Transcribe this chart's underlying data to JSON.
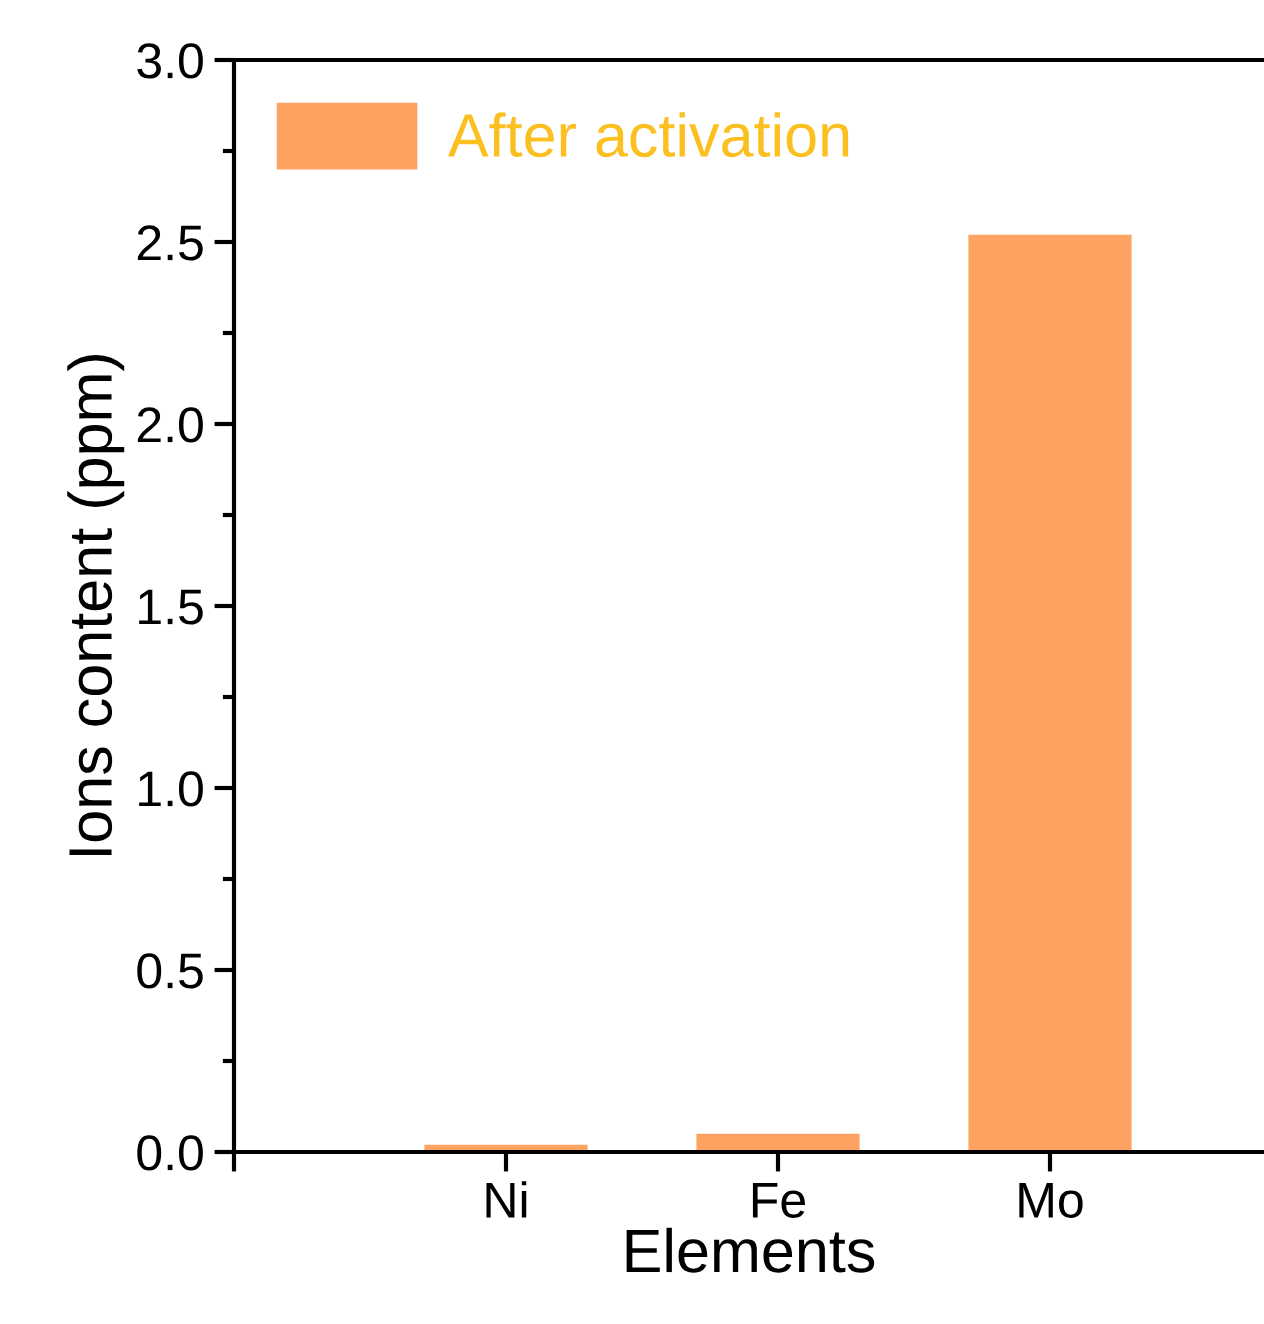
{
  "chart_data": {
    "type": "bar",
    "xlabel": "Elements",
    "ylabel": "Ions content (ppm)",
    "categories": [
      null,
      "Ni",
      "Fe",
      "Mo"
    ],
    "series": [
      {
        "name": "After activation",
        "color": "#fea262",
        "values": [
          null,
          0.02,
          0.05,
          2.52
        ]
      }
    ],
    "ylim": [
      0,
      3.0
    ],
    "yticks": [
      {
        "value": 0,
        "label": "0.0"
      },
      0.5,
      {
        "value": 1,
        "label": "1.0"
      },
      1.5,
      {
        "value": 2,
        "label": "2.0"
      },
      2.5,
      {
        "value": 3,
        "label": "3.0"
      }
    ],
    "grid": false,
    "legend": "top left"
  }
}
